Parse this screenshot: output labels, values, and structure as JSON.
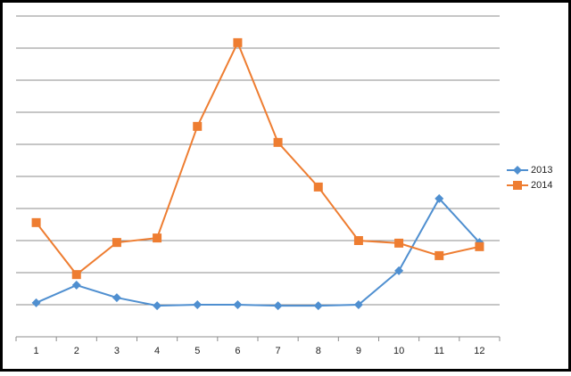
{
  "chart_data": {
    "type": "line",
    "categories": [
      "1",
      "2",
      "3",
      "4",
      "5",
      "6",
      "7",
      "8",
      "9",
      "10",
      "11",
      "12"
    ],
    "series": [
      {
        "name": "2013",
        "color": "#4f8fd0",
        "marker": "diamond",
        "values": [
          1.06,
          1.61,
          1.22,
          0.97,
          1.0,
          1.0,
          0.97,
          0.97,
          1.0,
          2.06,
          4.31,
          2.94
        ]
      },
      {
        "name": "2014",
        "color": "#ee7d31",
        "marker": "square",
        "values": [
          3.56,
          1.94,
          2.94,
          3.08,
          6.56,
          9.17,
          6.06,
          4.67,
          3.0,
          2.92,
          2.53,
          2.81
        ]
      }
    ],
    "ylim": [
      0,
      10
    ],
    "yticks": [
      0,
      1,
      2,
      3,
      4,
      5,
      6,
      7,
      8,
      9,
      10
    ],
    "grid": true,
    "legend": "right"
  }
}
